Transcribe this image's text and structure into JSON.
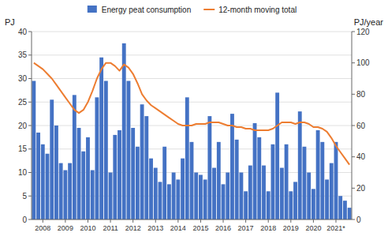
{
  "chart_data": {
    "type": "bar",
    "ylabel": "PJ",
    "y2label": "PJ/year",
    "categories": [
      null,
      null,
      "2008",
      null,
      null,
      null,
      null,
      "2009",
      null,
      null,
      null,
      null,
      "2010",
      null,
      null,
      null,
      null,
      "2011",
      null,
      null,
      null,
      null,
      "2012",
      null,
      null,
      null,
      null,
      "2013",
      null,
      null,
      null,
      null,
      "2014",
      null,
      null,
      null,
      null,
      "2015",
      null,
      null,
      null,
      null,
      "2016",
      null,
      null,
      null,
      null,
      "2017",
      null,
      null,
      null,
      null,
      "2018",
      null,
      null,
      null,
      null,
      "2019",
      null,
      null,
      null,
      null,
      "2020",
      null,
      null,
      null,
      null,
      "2021*",
      null,
      null,
      null
    ],
    "series": [
      {
        "name": "Energy peat consumption",
        "type": "bar",
        "color": "#4472C4",
        "values": [
          29.5,
          18.5,
          16.0,
          14.0,
          25.5,
          20.0,
          12.0,
          10.5,
          12.0,
          26.5,
          19.5,
          14.5,
          17.5,
          10.5,
          26.0,
          34.5,
          29.5,
          10.0,
          18.0,
          19.0,
          37.5,
          29.5,
          19.5,
          15.5,
          24.5,
          22.0,
          13.0,
          11.0,
          8.0,
          15.5,
          7.5,
          10.0,
          8.5,
          13.0,
          26.0,
          16.5,
          10.0,
          9.5,
          8.5,
          22.0,
          11.0,
          16.5,
          7.5,
          10.0,
          22.5,
          17.0,
          10.0,
          6.0,
          11.5,
          20.5,
          17.5,
          11.5,
          6.0,
          16.0,
          27.0,
          11.0,
          16.0,
          6.0,
          8.0,
          23.0,
          15.5,
          10.0,
          6.5,
          19.0,
          16.5,
          8.5,
          12.0,
          16.5,
          5.0,
          4.0,
          2.5
        ]
      },
      {
        "name": "12-month moving total",
        "type": "line",
        "color": "#ED7D31",
        "axis": "y2",
        "values": [
          100,
          98,
          96,
          93,
          90,
          86,
          82,
          78,
          74,
          70,
          68,
          70,
          75,
          82,
          90,
          96,
          100,
          100,
          98,
          95,
          99,
          97,
          93,
          87,
          80,
          76,
          73,
          71,
          69,
          67,
          65,
          63,
          61,
          60,
          60,
          60,
          61,
          61,
          61,
          62,
          62,
          62,
          61,
          60,
          60,
          59,
          59,
          58,
          58,
          57,
          57,
          57,
          57,
          58,
          60,
          62,
          62,
          62,
          61,
          62,
          62,
          61,
          59,
          59,
          58,
          56,
          52,
          47,
          43,
          39,
          35
        ]
      }
    ],
    "ylim": [
      0,
      40
    ],
    "yticks": [
      0,
      5,
      10,
      15,
      20,
      25,
      30,
      35,
      40
    ],
    "y2lim": [
      0,
      120
    ],
    "y2ticks": [
      0,
      20,
      40,
      60,
      80,
      100,
      120
    ],
    "grid": true,
    "legend": "top"
  }
}
